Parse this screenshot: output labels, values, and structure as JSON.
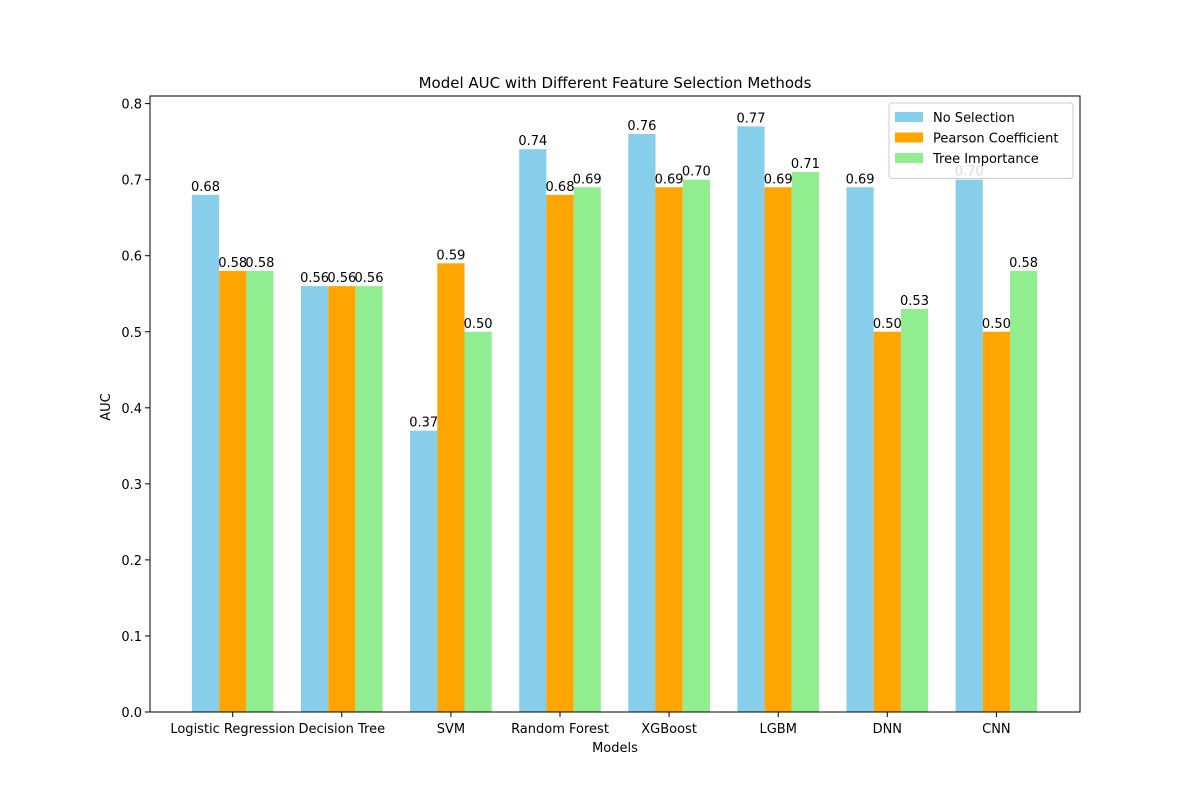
{
  "chart_data": {
    "type": "bar",
    "title": "Model AUC with Different Feature Selection Methods",
    "xlabel": "Models",
    "ylabel": "AUC",
    "ylim": [
      0,
      0.81
    ],
    "yticks": [
      "0.0",
      "0.1",
      "0.2",
      "0.3",
      "0.4",
      "0.5",
      "0.6",
      "0.7",
      "0.8"
    ],
    "categories": [
      "Logistic Regression",
      "Decision Tree",
      "SVM",
      "Random Forest",
      "XGBoost",
      "LGBM",
      "DNN",
      "CNN"
    ],
    "series": [
      {
        "name": "No Selection",
        "color": "#87CEEB",
        "values": [
          0.68,
          0.56,
          0.37,
          0.74,
          0.76,
          0.77,
          0.69,
          0.7
        ]
      },
      {
        "name": "Pearson Coefficient",
        "color": "#FFA500",
        "values": [
          0.58,
          0.56,
          0.59,
          0.68,
          0.69,
          0.69,
          0.5,
          0.5
        ]
      },
      {
        "name": "Tree Importance",
        "color": "#90EE90",
        "values": [
          0.58,
          0.56,
          0.5,
          0.69,
          0.7,
          0.71,
          0.53,
          0.58
        ]
      }
    ],
    "data_label_format": "2-decimals",
    "grid": false,
    "legend_position": "top-right"
  }
}
